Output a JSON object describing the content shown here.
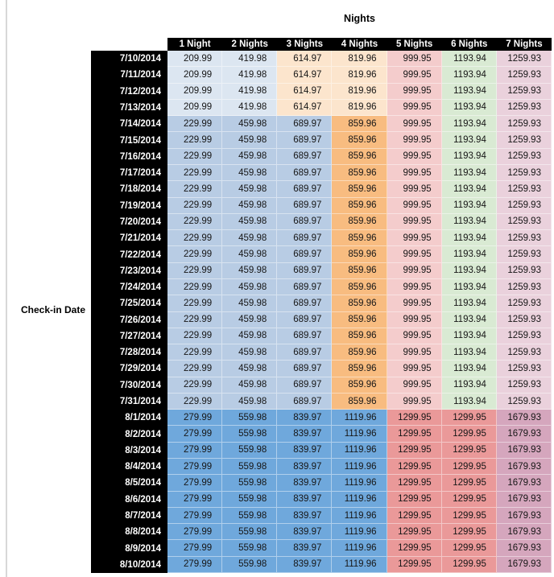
{
  "palette": {
    "blue_light": "#dce6f1",
    "blue_medium": "#b8cce4",
    "blue_dark": "#6fa8dc",
    "orange_light": "#fce5cd",
    "orange_medium": "#f8bc80",
    "red_light": "#f4cccc",
    "red_salmon": "#ea9999",
    "green_light": "#d9ead3",
    "pink_light": "#ead1dc",
    "pink_mauve": "#d5a6bd",
    "header_bg": "#000000",
    "header_text": "#ffffff"
  },
  "chart_data": {
    "type": "table",
    "title": "Nights",
    "row_label": "Check-in Date",
    "columns": [
      "1 Night",
      "2 Nights",
      "3 Nights",
      "4 Nights",
      "5 Nights",
      "6 Nights",
      "7 Nights"
    ],
    "groups": [
      {
        "dates": [
          "7/10/2014",
          "7/11/2014",
          "7/12/2014",
          "7/13/2014"
        ],
        "values": [
          "209.99",
          "419.98",
          "614.97",
          "819.96",
          "999.95",
          "1193.94",
          "1259.93"
        ],
        "colors": [
          "blue_light",
          "blue_light",
          "orange_light",
          "orange_light",
          "red_light",
          "green_light",
          "pink_light"
        ]
      },
      {
        "dates": [
          "7/14/2014",
          "7/15/2014",
          "7/16/2014",
          "7/17/2014",
          "7/18/2014",
          "7/19/2014",
          "7/20/2014",
          "7/21/2014",
          "7/22/2014",
          "7/23/2014",
          "7/24/2014",
          "7/25/2014",
          "7/26/2014",
          "7/27/2014",
          "7/28/2014",
          "7/29/2014",
          "7/30/2014",
          "7/31/2014"
        ],
        "values": [
          "229.99",
          "459.98",
          "689.97",
          "859.96",
          "999.95",
          "1193.94",
          "1259.93"
        ],
        "colors": [
          "blue_medium",
          "blue_medium",
          "blue_medium",
          "orange_medium",
          "red_light",
          "green_light",
          "pink_light"
        ]
      },
      {
        "dates": [
          "8/1/2014",
          "8/2/2014",
          "8/3/2014",
          "8/4/2014",
          "8/5/2014",
          "8/6/2014",
          "8/7/2014",
          "8/8/2014",
          "8/9/2014",
          "8/10/2014"
        ],
        "values": [
          "279.99",
          "559.98",
          "839.97",
          "1119.96",
          "1299.95",
          "1299.95",
          "1679.93"
        ],
        "colors": [
          "blue_dark",
          "blue_dark",
          "blue_dark",
          "blue_dark",
          "red_salmon",
          "red_salmon",
          "pink_mauve"
        ]
      }
    ]
  }
}
